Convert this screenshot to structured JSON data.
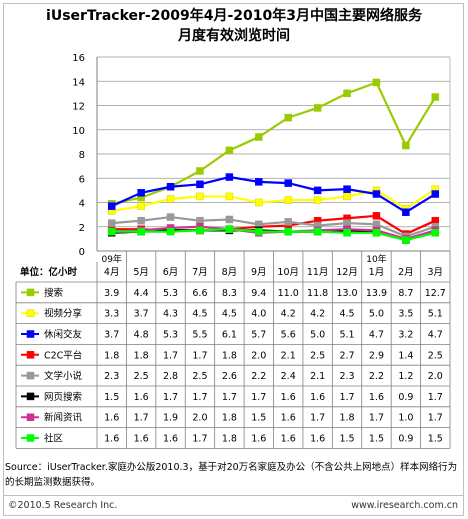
{
  "title_line1": "iUserTracker-2009年4月-2010年3月中国主要网络服务",
  "title_line2": "月度有效浏览时间",
  "unit_label": "单位：亿小时",
  "year_labels": [
    "09年",
    "10年"
  ],
  "source_text": "Source：iUserTracker.家庭办公版2010.3，基于对20万名家庭及办公（不含公共上网地点）样本网络行为的长期监测数据获得。",
  "copyright": "©2010.5 Research Inc.",
  "website": "www.iresearch.com.cn",
  "chart_data": {
    "type": "line",
    "title": "iUserTracker-2009年4月-2010年3月中国主要网络服务 月度有效浏览时间",
    "ylabel": "单位：亿小时",
    "ylim": [
      0,
      16
    ],
    "yticks": [
      0,
      2,
      4,
      6,
      8,
      10,
      12,
      14,
      16
    ],
    "grid": true,
    "legend": "table-below",
    "categories": [
      "4月",
      "5月",
      "6月",
      "7月",
      "8月",
      "9月",
      "10月",
      "11月",
      "12月",
      "1月",
      "2月",
      "3月"
    ],
    "series": [
      {
        "name": "搜索",
        "color": "#99cc00",
        "marker": "square",
        "values": [
          3.9,
          4.4,
          5.3,
          6.6,
          8.3,
          9.4,
          11.0,
          11.8,
          13.0,
          13.9,
          8.7,
          12.7
        ]
      },
      {
        "name": "视频分享",
        "color": "#ffff00",
        "marker": "square",
        "values": [
          3.3,
          3.7,
          4.3,
          4.5,
          4.5,
          4.0,
          4.2,
          4.2,
          4.5,
          5.0,
          3.5,
          5.1
        ]
      },
      {
        "name": "休闲交友",
        "color": "#0000ff",
        "marker": "square",
        "values": [
          3.7,
          4.8,
          5.3,
          5.5,
          6.1,
          5.7,
          5.6,
          5.0,
          5.1,
          4.7,
          3.2,
          4.7
        ]
      },
      {
        "name": "C2C平台",
        "color": "#ff0000",
        "marker": "square",
        "values": [
          1.8,
          1.8,
          1.7,
          1.7,
          1.8,
          2.0,
          2.1,
          2.5,
          2.7,
          2.9,
          1.4,
          2.5
        ]
      },
      {
        "name": "文学小说",
        "color": "#999999",
        "marker": "square",
        "values": [
          2.3,
          2.5,
          2.8,
          2.5,
          2.6,
          2.2,
          2.4,
          2.1,
          2.3,
          2.2,
          1.2,
          2.0
        ]
      },
      {
        "name": "网页搜索",
        "color": "#000000",
        "marker": "square",
        "values": [
          1.5,
          1.6,
          1.7,
          1.7,
          1.7,
          1.7,
          1.6,
          1.6,
          1.7,
          1.6,
          0.9,
          1.7
        ]
      },
      {
        "name": "新闻资讯",
        "color": "#cc3399",
        "marker": "square",
        "values": [
          1.6,
          1.7,
          1.9,
          2.0,
          1.8,
          1.5,
          1.6,
          1.7,
          1.8,
          1.7,
          1.0,
          1.7
        ]
      },
      {
        "name": "社区",
        "color": "#00ff00",
        "marker": "square",
        "values": [
          1.6,
          1.6,
          1.6,
          1.7,
          1.8,
          1.6,
          1.6,
          1.6,
          1.5,
          1.5,
          0.9,
          1.5
        ]
      }
    ]
  }
}
